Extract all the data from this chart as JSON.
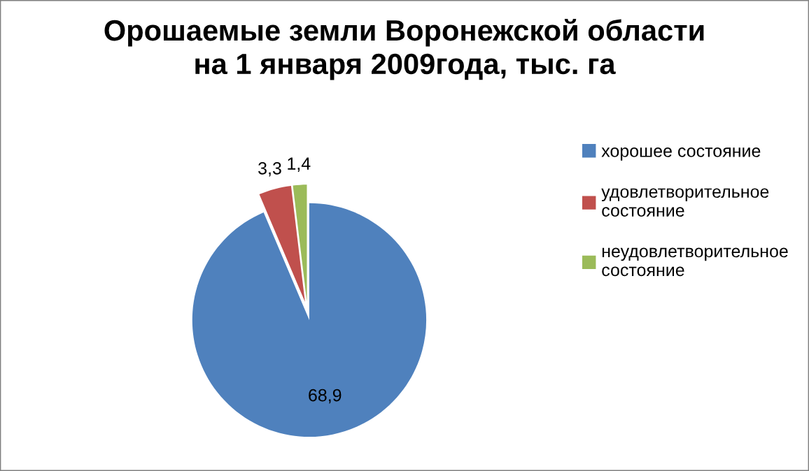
{
  "chart_data": {
    "type": "pie",
    "title": "Орошаемые земли Воронежской области\nна 1 января 2009года, тыс. га",
    "categories": [
      "хорошее состояние",
      "удовлетворительное состояние",
      "неудовлетворительное состояние"
    ],
    "values": [
      68.9,
      3.3,
      1.4
    ],
    "colors": [
      "#4f81bd",
      "#c0504d",
      "#9bbb59"
    ],
    "value_labels": [
      "68,9",
      "3,3",
      "1,4"
    ],
    "legend": "right"
  }
}
